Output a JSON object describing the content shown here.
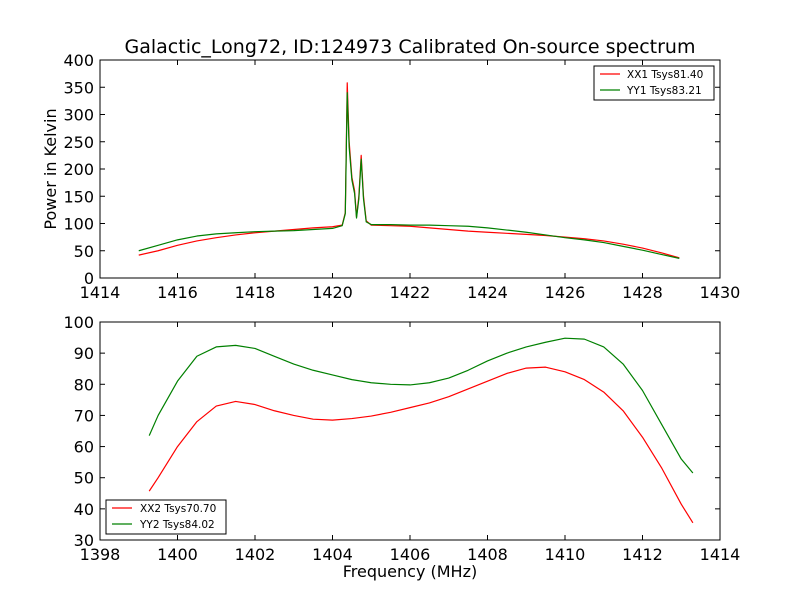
{
  "colors": {
    "red": "#ff0000",
    "green": "#008000",
    "axes": "#000000",
    "background": "#ffffff"
  },
  "chart_data": [
    {
      "type": "line",
      "title": "Galactic_Long72, ID:124973 Calibrated On-source spectrum",
      "xlabel": "",
      "ylabel": "Power in Kelvin",
      "xlim": [
        1414,
        1430
      ],
      "ylim": [
        0,
        400
      ],
      "xticks": [
        "1414",
        "1416",
        "1418",
        "1420",
        "1422",
        "1424",
        "1426",
        "1428",
        "1430"
      ],
      "yticks": [
        "0",
        "50",
        "100",
        "150",
        "200",
        "250",
        "300",
        "350",
        "400"
      ],
      "grid": false,
      "legend_position": "top-right",
      "series": [
        {
          "name": "XX1 Tsys81.40",
          "color": "#ff0000",
          "points": [
            [
              1415.0,
              42
            ],
            [
              1415.5,
              50
            ],
            [
              1416.0,
              60
            ],
            [
              1416.5,
              68
            ],
            [
              1417.0,
              74
            ],
            [
              1417.5,
              79
            ],
            [
              1418.0,
              83
            ],
            [
              1418.5,
              86
            ],
            [
              1419.0,
              89
            ],
            [
              1419.5,
              92
            ],
            [
              1420.0,
              94
            ],
            [
              1420.25,
              97
            ],
            [
              1420.33,
              120
            ],
            [
              1420.38,
              358
            ],
            [
              1420.43,
              250
            ],
            [
              1420.5,
              185
            ],
            [
              1420.57,
              160
            ],
            [
              1420.62,
              112
            ],
            [
              1420.68,
              150
            ],
            [
              1420.74,
              225
            ],
            [
              1420.8,
              150
            ],
            [
              1420.87,
              105
            ],
            [
              1421.0,
              97
            ],
            [
              1421.5,
              96
            ],
            [
              1422.0,
              95
            ],
            [
              1422.5,
              92
            ],
            [
              1423.0,
              89
            ],
            [
              1423.5,
              86
            ],
            [
              1424.0,
              84
            ],
            [
              1424.5,
              82
            ],
            [
              1425.0,
              80
            ],
            [
              1425.5,
              78
            ],
            [
              1426.0,
              75
            ],
            [
              1426.5,
              72
            ],
            [
              1427.0,
              68
            ],
            [
              1427.5,
              62
            ],
            [
              1428.0,
              55
            ],
            [
              1428.5,
              46
            ],
            [
              1428.95,
              37
            ]
          ]
        },
        {
          "name": "YY1 Tsys83.21",
          "color": "#008000",
          "points": [
            [
              1415.0,
              50
            ],
            [
              1415.5,
              60
            ],
            [
              1416.0,
              70
            ],
            [
              1416.5,
              77
            ],
            [
              1417.0,
              81
            ],
            [
              1417.5,
              83
            ],
            [
              1418.0,
              85
            ],
            [
              1418.5,
              86
            ],
            [
              1419.0,
              87
            ],
            [
              1419.5,
              89
            ],
            [
              1420.0,
              91
            ],
            [
              1420.25,
              96
            ],
            [
              1420.33,
              118
            ],
            [
              1420.38,
              340
            ],
            [
              1420.43,
              240
            ],
            [
              1420.5,
              180
            ],
            [
              1420.57,
              155
            ],
            [
              1420.62,
              110
            ],
            [
              1420.68,
              145
            ],
            [
              1420.74,
              218
            ],
            [
              1420.8,
              145
            ],
            [
              1420.87,
              103
            ],
            [
              1421.0,
              98
            ],
            [
              1421.5,
              98
            ],
            [
              1422.0,
              97
            ],
            [
              1422.5,
              97
            ],
            [
              1423.0,
              96
            ],
            [
              1423.5,
              95
            ],
            [
              1424.0,
              92
            ],
            [
              1424.5,
              88
            ],
            [
              1425.0,
              84
            ],
            [
              1425.5,
              79
            ],
            [
              1426.0,
              74
            ],
            [
              1426.5,
              70
            ],
            [
              1427.0,
              65
            ],
            [
              1427.5,
              58
            ],
            [
              1428.0,
              51
            ],
            [
              1428.5,
              43
            ],
            [
              1428.95,
              36
            ]
          ]
        }
      ]
    },
    {
      "type": "line",
      "title": "",
      "xlabel": "Frequency (MHz)",
      "ylabel": "",
      "xlim": [
        1398,
        1414
      ],
      "ylim": [
        30,
        100
      ],
      "xticks": [
        "1398",
        "1400",
        "1402",
        "1404",
        "1406",
        "1408",
        "1410",
        "1412",
        "1414"
      ],
      "yticks": [
        "30",
        "40",
        "50",
        "60",
        "70",
        "80",
        "90",
        "100"
      ],
      "grid": false,
      "legend_position": "bottom-left",
      "series": [
        {
          "name": "XX2 Tsys70.70",
          "color": "#ff0000",
          "points": [
            [
              1399.27,
              45.7
            ],
            [
              1399.5,
              50
            ],
            [
              1400.0,
              60
            ],
            [
              1400.5,
              68
            ],
            [
              1401.0,
              73
            ],
            [
              1401.5,
              74.5
            ],
            [
              1402.0,
              73.5
            ],
            [
              1402.5,
              71.5
            ],
            [
              1403.0,
              70
            ],
            [
              1403.5,
              68.8
            ],
            [
              1404.0,
              68.5
            ],
            [
              1404.5,
              69
            ],
            [
              1405.0,
              69.8
            ],
            [
              1405.5,
              71
            ],
            [
              1406.0,
              72.5
            ],
            [
              1406.5,
              74
            ],
            [
              1407.0,
              76
            ],
            [
              1407.5,
              78.5
            ],
            [
              1408.0,
              81
            ],
            [
              1408.5,
              83.5
            ],
            [
              1409.0,
              85.2
            ],
            [
              1409.5,
              85.5
            ],
            [
              1410.0,
              84
            ],
            [
              1410.5,
              81.5
            ],
            [
              1411.0,
              77.5
            ],
            [
              1411.5,
              71.5
            ],
            [
              1412.0,
              63
            ],
            [
              1412.5,
              53
            ],
            [
              1413.0,
              41.5
            ],
            [
              1413.3,
              35.5
            ]
          ]
        },
        {
          "name": "YY2 Tsys84.02",
          "color": "#008000",
          "points": [
            [
              1399.27,
              63.5
            ],
            [
              1399.5,
              70
            ],
            [
              1400.0,
              81
            ],
            [
              1400.5,
              89
            ],
            [
              1401.0,
              92
            ],
            [
              1401.5,
              92.5
            ],
            [
              1402.0,
              91.5
            ],
            [
              1402.5,
              89
            ],
            [
              1403.0,
              86.5
            ],
            [
              1403.5,
              84.5
            ],
            [
              1404.0,
              83
            ],
            [
              1404.5,
              81.5
            ],
            [
              1405.0,
              80.5
            ],
            [
              1405.5,
              80
            ],
            [
              1406.0,
              79.8
            ],
            [
              1406.5,
              80.5
            ],
            [
              1407.0,
              82
            ],
            [
              1407.5,
              84.5
            ],
            [
              1408.0,
              87.5
            ],
            [
              1408.5,
              90
            ],
            [
              1409.0,
              92
            ],
            [
              1409.5,
              93.5
            ],
            [
              1410.0,
              94.8
            ],
            [
              1410.5,
              94.5
            ],
            [
              1411.0,
              92
            ],
            [
              1411.5,
              86.5
            ],
            [
              1412.0,
              78
            ],
            [
              1412.5,
              67
            ],
            [
              1413.0,
              56
            ],
            [
              1413.3,
              51.5
            ]
          ]
        }
      ]
    }
  ]
}
